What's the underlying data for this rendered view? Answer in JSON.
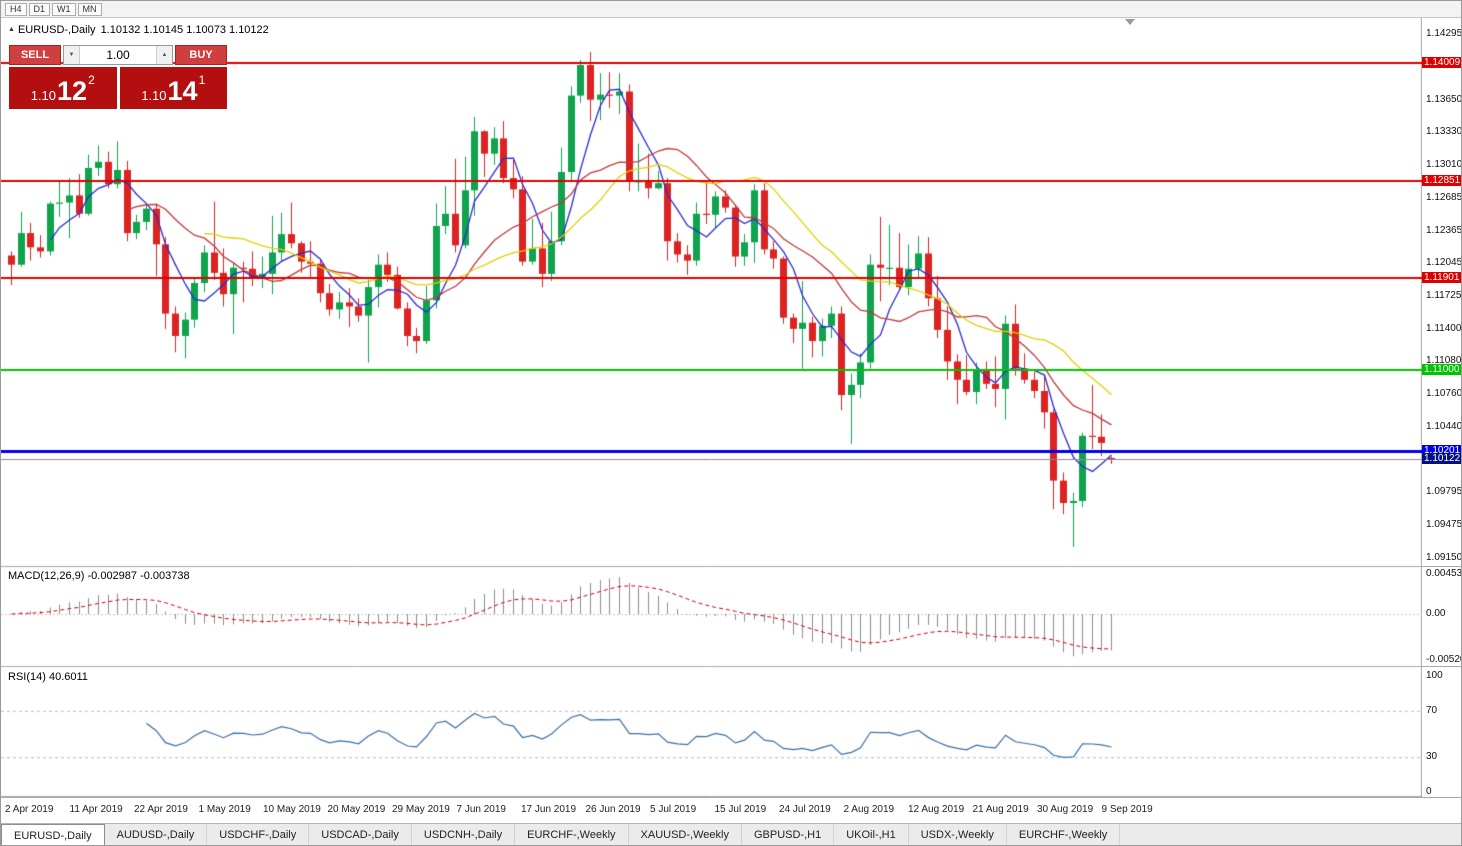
{
  "toolbar": {
    "timeframes": [
      "H4",
      "D1",
      "W1",
      "MN"
    ]
  },
  "icons": {
    "collapse": "▲",
    "up": "▲",
    "down": "▼"
  },
  "one_click": {
    "sell_label": "SELL",
    "buy_label": "BUY",
    "volume": "1.00",
    "bid": {
      "prefix": "1.10",
      "big": "12",
      "sup": "2"
    },
    "ask": {
      "prefix": "1.10",
      "big": "14",
      "sup": "1"
    }
  },
  "chart_data": {
    "type": "candlestick",
    "title": "EURUSD-,Daily",
    "ohlc_text": "1.10132 1.10145 1.10073 1.10122",
    "current": {
      "open": 1.10132,
      "high": 1.10145,
      "low": 1.10073,
      "close": 1.10122
    },
    "x_labels": [
      "2 Apr 2019",
      "11 Apr 2019",
      "22 Apr 2019",
      "1 May 2019",
      "10 May 2019",
      "20 May 2019",
      "29 May 2019",
      "7 Jun 2019",
      "17 Jun 2019",
      "26 Jun 2019",
      "5 Jul 2019",
      "15 Jul 2019",
      "24 Jul 2019",
      "2 Aug 2019",
      "12 Aug 2019",
      "21 Aug 2019",
      "30 Aug 2019",
      "9 Sep 2019"
    ],
    "y_axis": {
      "max": 1.14295,
      "min": 1.0915,
      "labels": [
        "1.14295",
        "1.13650",
        "1.13330",
        "1.13010",
        "1.12685",
        "1.12365",
        "1.12045",
        "1.11725",
        "1.11400",
        "1.11080",
        "1.10760",
        "1.10440",
        "1.09795",
        "1.09475",
        "1.09150"
      ]
    },
    "levels": [
      {
        "price": 1.14009,
        "label": "1.14009",
        "color": "#dd0000",
        "width": 2
      },
      {
        "price": 1.12851,
        "label": "1.12851",
        "color": "#dd0000",
        "width": 2
      },
      {
        "price": 1.11901,
        "label": "1.11901",
        "color": "#dd0000",
        "width": 2
      },
      {
        "price": 1.11,
        "label": "1.11000",
        "color": "#00c400",
        "width": 2
      },
      {
        "price": 1.10201,
        "label": "1.10201",
        "color": "#0000e6",
        "width": 3
      },
      {
        "price": 1.10122,
        "label": "1.10122",
        "color": "#8c8c8c",
        "width": 1,
        "badge": "#001080"
      }
    ],
    "moving_averages": [
      {
        "period": 5,
        "color": "#2b2bd4"
      },
      {
        "period": 13,
        "color": "#c03a3a"
      },
      {
        "period": 21,
        "color": "#e3cf00"
      }
    ],
    "indicators": {
      "macd": {
        "label": "MACD(12,26,9)",
        "values_text": "-0.002987 -0.003738",
        "fast": 12,
        "slow": 26,
        "signal": 9,
        "scale": [
          "0.004536",
          "0.00",
          "-0.005205"
        ],
        "range": [
          -0.005205,
          0.004536
        ]
      },
      "rsi": {
        "label": "RSI(14)",
        "value_text": "40.6011",
        "period": 14,
        "scale": [
          "100",
          "70",
          "30",
          "0"
        ],
        "level_lines": [
          70,
          30
        ]
      }
    },
    "colors": {
      "up_candle": "#0fa34e",
      "down_candle": "#dd2222",
      "macd_bar": "#8c8c8c",
      "macd_signal": "#cc0000",
      "rsi_line": "#3a6ea5",
      "separator": "#a8a8a8"
    },
    "candles": [
      [
        1.1212,
        1.1216,
        1.1183,
        1.1203
      ],
      [
        1.1203,
        1.1255,
        1.1201,
        1.1234
      ],
      [
        1.1234,
        1.1244,
        1.1207,
        1.122
      ],
      [
        1.122,
        1.1232,
        1.121,
        1.1216
      ],
      [
        1.1216,
        1.1265,
        1.1212,
        1.1263
      ],
      [
        1.1263,
        1.1285,
        1.125,
        1.1264
      ],
      [
        1.1264,
        1.1288,
        1.1229,
        1.1271
      ],
      [
        1.1271,
        1.1292,
        1.1249,
        1.1253
      ],
      [
        1.1253,
        1.1311,
        1.1251,
        1.1298
      ],
      [
        1.1298,
        1.132,
        1.129,
        1.1304
      ],
      [
        1.1304,
        1.1314,
        1.1278,
        1.1282
      ],
      [
        1.1282,
        1.1324,
        1.1278,
        1.1296
      ],
      [
        1.1296,
        1.1305,
        1.1226,
        1.1234
      ],
      [
        1.1234,
        1.1252,
        1.1228,
        1.1245
      ],
      [
        1.1245,
        1.1262,
        1.1237,
        1.1258
      ],
      [
        1.1258,
        1.1263,
        1.1192,
        1.1223
      ],
      [
        1.1223,
        1.123,
        1.114,
        1.1155
      ],
      [
        1.1155,
        1.1162,
        1.1117,
        1.1133
      ],
      [
        1.1133,
        1.1156,
        1.1111,
        1.1149
      ],
      [
        1.1149,
        1.119,
        1.1141,
        1.1185
      ],
      [
        1.1185,
        1.1222,
        1.1176,
        1.1215
      ],
      [
        1.1215,
        1.1265,
        1.1188,
        1.1195
      ],
      [
        1.1195,
        1.1219,
        1.1162,
        1.1174
      ],
      [
        1.1174,
        1.1205,
        1.1135,
        1.12
      ],
      [
        1.12,
        1.1206,
        1.1166,
        1.1199
      ],
      [
        1.1199,
        1.1216,
        1.1182,
        1.119
      ],
      [
        1.119,
        1.1211,
        1.118,
        1.1194
      ],
      [
        1.1194,
        1.1251,
        1.1174,
        1.1215
      ],
      [
        1.1215,
        1.1254,
        1.1206,
        1.1233
      ],
      [
        1.1233,
        1.1264,
        1.1219,
        1.1224
      ],
      [
        1.1224,
        1.1226,
        1.1195,
        1.1206
      ],
      [
        1.1206,
        1.1226,
        1.1191,
        1.1204
      ],
      [
        1.1204,
        1.1208,
        1.1166,
        1.1175
      ],
      [
        1.1175,
        1.1184,
        1.1153,
        1.1159
      ],
      [
        1.1159,
        1.1176,
        1.115,
        1.1166
      ],
      [
        1.1166,
        1.118,
        1.1142,
        1.1162
      ],
      [
        1.1162,
        1.117,
        1.1147,
        1.1153
      ],
      [
        1.1153,
        1.1188,
        1.1107,
        1.1181
      ],
      [
        1.1181,
        1.1213,
        1.1161,
        1.1203
      ],
      [
        1.1203,
        1.1215,
        1.1186,
        1.1193
      ],
      [
        1.1193,
        1.1201,
        1.1159,
        1.116
      ],
      [
        1.116,
        1.1166,
        1.1123,
        1.1133
      ],
      [
        1.1133,
        1.1141,
        1.1116,
        1.1128
      ],
      [
        1.1128,
        1.1182,
        1.1125,
        1.1168
      ],
      [
        1.1168,
        1.1263,
        1.116,
        1.1241
      ],
      [
        1.1241,
        1.128,
        1.1233,
        1.1253
      ],
      [
        1.1253,
        1.1307,
        1.1215,
        1.1222
      ],
      [
        1.1222,
        1.1309,
        1.1219,
        1.1276
      ],
      [
        1.1276,
        1.1348,
        1.1251,
        1.1334
      ],
      [
        1.1334,
        1.1335,
        1.1289,
        1.1312
      ],
      [
        1.1312,
        1.1338,
        1.1301,
        1.1327
      ],
      [
        1.1327,
        1.1344,
        1.1283,
        1.1288
      ],
      [
        1.1288,
        1.1306,
        1.1268,
        1.1277
      ],
      [
        1.1277,
        1.129,
        1.1202,
        1.1206
      ],
      [
        1.1206,
        1.1248,
        1.1203,
        1.1219
      ],
      [
        1.1219,
        1.1244,
        1.1181,
        1.1194
      ],
      [
        1.1194,
        1.1255,
        1.1187,
        1.1226
      ],
      [
        1.1226,
        1.1318,
        1.1222,
        1.1294
      ],
      [
        1.1294,
        1.1378,
        1.1285,
        1.1369
      ],
      [
        1.1369,
        1.1404,
        1.1362,
        1.1399
      ],
      [
        1.1399,
        1.1412,
        1.1344,
        1.1365
      ],
      [
        1.1365,
        1.1391,
        1.1345,
        1.137
      ],
      [
        1.137,
        1.1392,
        1.1357,
        1.1369
      ],
      [
        1.1369,
        1.1391,
        1.1351,
        1.1373
      ],
      [
        1.1373,
        1.138,
        1.1275,
        1.1285
      ],
      [
        1.1285,
        1.1322,
        1.1275,
        1.1285
      ],
      [
        1.1285,
        1.1312,
        1.1268,
        1.1278
      ],
      [
        1.1278,
        1.1295,
        1.1277,
        1.1283
      ],
      [
        1.1283,
        1.1288,
        1.1207,
        1.1226
      ],
      [
        1.1226,
        1.1234,
        1.1205,
        1.1213
      ],
      [
        1.1213,
        1.1222,
        1.1193,
        1.1207
      ],
      [
        1.1207,
        1.1264,
        1.1202,
        1.1253
      ],
      [
        1.1253,
        1.1285,
        1.1243,
        1.1252
      ],
      [
        1.1252,
        1.1275,
        1.1239,
        1.127
      ],
      [
        1.127,
        1.1276,
        1.1254,
        1.1259
      ],
      [
        1.1259,
        1.1262,
        1.1201,
        1.1211
      ],
      [
        1.1211,
        1.1233,
        1.1202,
        1.1225
      ],
      [
        1.1225,
        1.1282,
        1.1205,
        1.1276
      ],
      [
        1.1276,
        1.1283,
        1.1213,
        1.1218
      ],
      [
        1.1218,
        1.1226,
        1.1199,
        1.1209
      ],
      [
        1.1209,
        1.1211,
        1.1145,
        1.1151
      ],
      [
        1.1151,
        1.1155,
        1.1126,
        1.114
      ],
      [
        1.114,
        1.1187,
        1.1101,
        1.1146
      ],
      [
        1.1146,
        1.1152,
        1.1112,
        1.1128
      ],
      [
        1.1128,
        1.115,
        1.1113,
        1.1143
      ],
      [
        1.1143,
        1.1162,
        1.1131,
        1.1155
      ],
      [
        1.1155,
        1.1162,
        1.106,
        1.1075
      ],
      [
        1.1075,
        1.1096,
        1.1027,
        1.1085
      ],
      [
        1.1085,
        1.1116,
        1.1072,
        1.1107
      ],
      [
        1.1107,
        1.1213,
        1.1101,
        1.1203
      ],
      [
        1.1203,
        1.125,
        1.1167,
        1.12
      ],
      [
        1.12,
        1.1242,
        1.1183,
        1.12
      ],
      [
        1.12,
        1.1234,
        1.1178,
        1.1181
      ],
      [
        1.1181,
        1.1223,
        1.1173,
        1.1199
      ],
      [
        1.1199,
        1.1231,
        1.119,
        1.1214
      ],
      [
        1.1214,
        1.123,
        1.1162,
        1.117
      ],
      [
        1.117,
        1.1192,
        1.1131,
        1.1139
      ],
      [
        1.1139,
        1.1162,
        1.109,
        1.1108
      ],
      [
        1.1108,
        1.1115,
        1.1066,
        1.109
      ],
      [
        1.109,
        1.1114,
        1.1075,
        1.1078
      ],
      [
        1.1078,
        1.1107,
        1.1066,
        1.11
      ],
      [
        1.11,
        1.1108,
        1.1081,
        1.1086
      ],
      [
        1.1086,
        1.1113,
        1.1063,
        1.1081
      ],
      [
        1.1081,
        1.1153,
        1.1051,
        1.1145
      ],
      [
        1.1145,
        1.1164,
        1.1094,
        1.1101
      ],
      [
        1.1101,
        1.1116,
        1.1086,
        1.109
      ],
      [
        1.109,
        1.1098,
        1.1072,
        1.1079
      ],
      [
        1.1079,
        1.1094,
        1.1042,
        1.1058
      ],
      [
        1.1058,
        1.1061,
        1.0963,
        1.0991
      ],
      [
        1.0991,
        1.0999,
        1.0958,
        1.0969
      ],
      [
        1.0969,
        1.0979,
        1.0926,
        1.0971
      ],
      [
        1.0971,
        1.1038,
        1.0965,
        1.1035
      ],
      [
        1.1035,
        1.1085,
        1.1022,
        1.1034
      ],
      [
        1.1034,
        1.1056,
        1.1015,
        1.1028
      ],
      [
        1.10132,
        1.10145,
        1.10073,
        1.10122
      ]
    ]
  },
  "bottom_bar": {
    "active_index": 0,
    "tabs": [
      "EURUSD-,Daily",
      "AUDUSD-,Daily",
      "USDCHF-,Daily",
      "USDCAD-,Daily",
      "USDCNH-,Daily",
      "EURCHF-,Weekly",
      "XAUUSD-,Weekly",
      "GBPUSD-,H1",
      "UKOil-,H1",
      "USDX-,Weekly",
      "EURCHF-,Weekly"
    ]
  }
}
